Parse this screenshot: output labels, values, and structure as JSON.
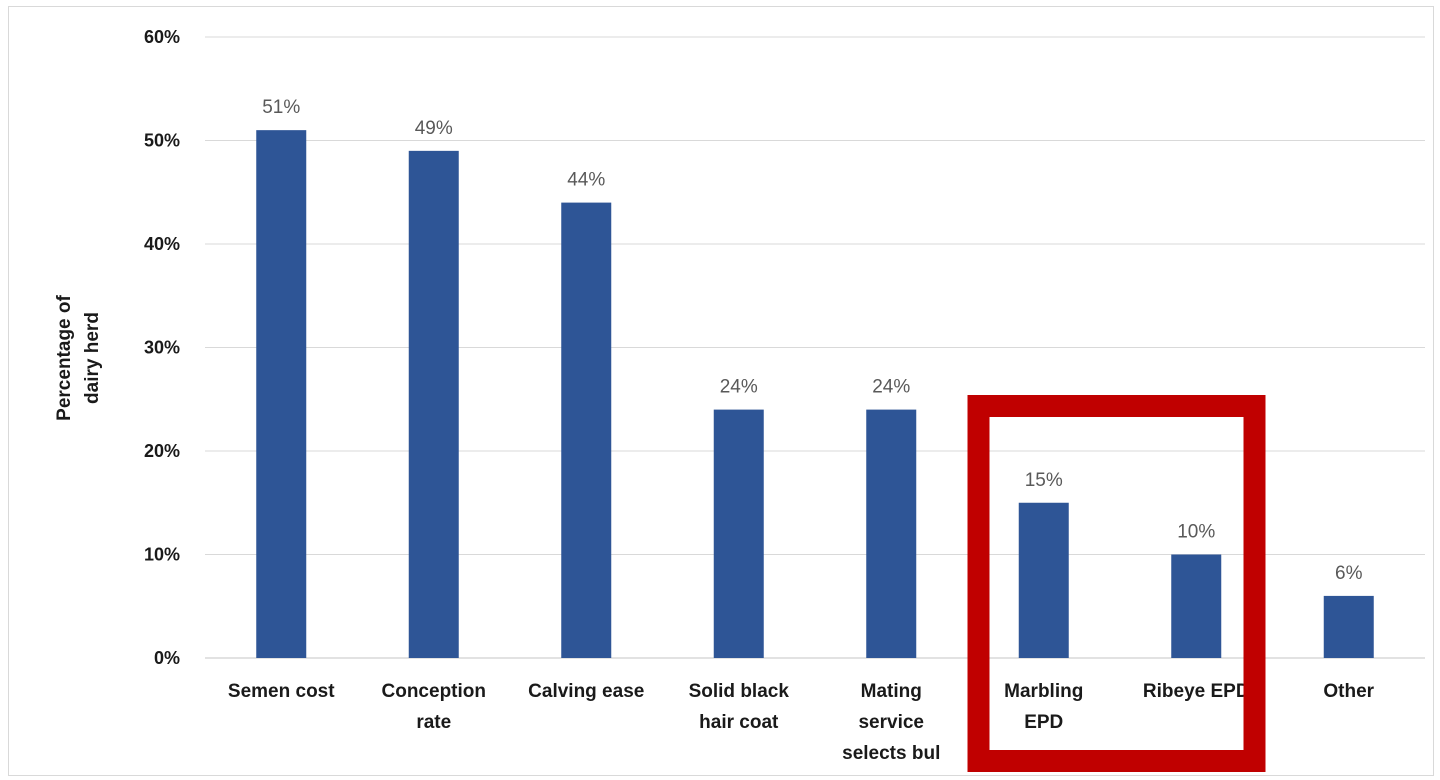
{
  "chart_data": {
    "type": "bar",
    "title": "",
    "xlabel": "",
    "ylabel": "Percentage of dairy herd",
    "ylabel_lines": [
      "Percentage of",
      "dairy herd"
    ],
    "categories": [
      "Semen cost",
      "Conception rate",
      "Calving ease",
      "Solid black hair coat",
      "Mating service selects bul",
      "Marbling EPD",
      "Ribeye EPD",
      "Other"
    ],
    "category_lines": [
      [
        "Semen cost"
      ],
      [
        "Conception",
        "rate"
      ],
      [
        "Calving ease"
      ],
      [
        "Solid black",
        "hair coat"
      ],
      [
        "Mating",
        "service",
        "selects bul"
      ],
      [
        "Marbling",
        "EPD"
      ],
      [
        "Ribeye EPD"
      ],
      [
        "Other"
      ]
    ],
    "values": [
      51,
      49,
      44,
      24,
      24,
      15,
      10,
      6
    ],
    "data_labels": [
      "51%",
      "49%",
      "44%",
      "24%",
      "24%",
      "15%",
      "10%",
      "6%"
    ],
    "ylim": [
      0,
      60
    ],
    "yticks": [
      0,
      10,
      20,
      30,
      40,
      50,
      60
    ],
    "ytick_labels": [
      "0%",
      "10%",
      "20%",
      "30%",
      "40%",
      "50%",
      "60%"
    ],
    "grid": true,
    "legend": "none",
    "bar_color": "#2e5596",
    "grid_color": "#d9d9d9",
    "highlight": {
      "categories": [
        "Marbling EPD",
        "Ribeye EPD"
      ],
      "color": "#c00000"
    }
  }
}
